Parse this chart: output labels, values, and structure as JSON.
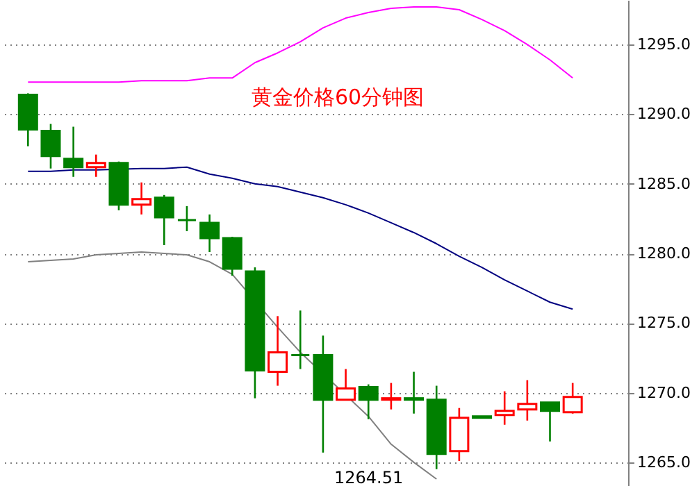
{
  "chart_data": {
    "type": "candlestick",
    "title": "黄金价格60分钟图",
    "categories": [
      null,
      null,
      null,
      null,
      null,
      null,
      null,
      null,
      null,
      null,
      null,
      null,
      null,
      null,
      null,
      null,
      null,
      null,
      null,
      null,
      null,
      null,
      null,
      null,
      null
    ],
    "ohlc": [
      [
        1291.4,
        1291.5,
        1287.7,
        1288.9
      ],
      [
        1288.8,
        1289.3,
        1286.1,
        1287.0
      ],
      [
        1286.8,
        1289.1,
        1285.5,
        1286.2
      ],
      [
        1286.2,
        1287.1,
        1285.5,
        1286.5
      ],
      [
        1286.5,
        1286.6,
        1283.1,
        1283.5
      ],
      [
        1283.5,
        1285.1,
        1282.8,
        1283.9
      ],
      [
        1284.0,
        1284.2,
        1280.6,
        1282.6
      ],
      [
        1282.4,
        1283.4,
        1281.6,
        1282.4
      ],
      [
        1282.2,
        1282.8,
        1280.1,
        1281.1
      ],
      [
        1281.1,
        1281.2,
        1278.4,
        1278.9
      ],
      [
        1278.7,
        1279.0,
        1269.6,
        1271.6
      ],
      [
        1271.5,
        1275.5,
        1270.5,
        1272.9
      ],
      [
        1272.7,
        1275.9,
        1271.7,
        1272.7
      ],
      [
        1272.7,
        1274.1,
        1265.7,
        1269.5
      ],
      [
        1269.5,
        1271.7,
        1269.5,
        1270.3
      ],
      [
        1270.4,
        1270.6,
        1268.1,
        1269.5
      ],
      [
        1269.5,
        1270.7,
        1268.8,
        1269.6
      ],
      [
        1269.6,
        1271.5,
        1268.5,
        1269.5
      ],
      [
        1269.5,
        1270.5,
        1264.51,
        1265.6
      ],
      [
        1265.8,
        1268.9,
        1265.1,
        1268.2
      ],
      [
        1268.3,
        1268.3,
        1268.2,
        1268.2
      ],
      [
        1268.4,
        1270.1,
        1267.7,
        1268.7
      ],
      [
        1268.8,
        1270.9,
        1268.0,
        1269.2
      ],
      [
        1269.3,
        1269.3,
        1266.5,
        1268.7
      ],
      [
        1268.6,
        1270.7,
        1268.5,
        1269.7
      ]
    ],
    "colors": [
      "#008000",
      "#008000",
      "#008000",
      "#ff0000",
      "#008000",
      "#ff0000",
      "#008000",
      "#008000",
      "#008000",
      "#008000",
      "#008000",
      "#ff0000",
      "#008000",
      "#008000",
      "#ff0000",
      "#008000",
      "#ff0000",
      "#008000",
      "#008000",
      "#ff0000",
      "#008000",
      "#ff0000",
      "#ff0000",
      "#008000",
      "#ff0000"
    ],
    "series": [
      {
        "type": "line",
        "color": "#ff00ff",
        "values": [
          1292.3,
          1292.3,
          1292.3,
          1292.3,
          1292.3,
          1292.4,
          1292.4,
          1292.4,
          1292.6,
          1292.6,
          1293.7,
          1294.4,
          1295.2,
          1296.2,
          1296.9,
          1297.3,
          1297.6,
          1297.7,
          1297.7,
          1297.5,
          1296.8,
          1296.0,
          1295.0,
          1293.9,
          1292.6
        ]
      },
      {
        "type": "line",
        "color": "#000080",
        "values": [
          1285.9,
          1285.9,
          1286.0,
          1286.0,
          null,
          1286.1,
          1286.1,
          1286.2,
          1285.7,
          1285.4,
          1285.0,
          1284.8,
          1284.4,
          1284.0,
          1283.5,
          1282.9,
          1282.2,
          1281.5,
          1280.7,
          1279.8,
          1279.0,
          1278.1,
          1277.3,
          1276.5,
          1276.0
        ]
      },
      {
        "type": "line",
        "color": "#808080",
        "values": [
          1279.4,
          1279.5,
          1279.6,
          1279.9,
          1280.0,
          1280.1,
          1280.0,
          1279.9,
          1279.4,
          1278.5,
          null,
          1274.7,
          1272.9,
          null,
          null,
          1268.3,
          1266.3,
          1265.0,
          1263.8,
          null,
          null,
          null,
          null,
          null,
          null
        ]
      }
    ],
    "annotations": [
      "1264.51"
    ],
    "ylim": [
      1263.3,
      1298.2
    ],
    "yticks": [
      {
        "value": 1265,
        "label": "1265.0"
      },
      {
        "value": 1270,
        "label": "1270.0"
      },
      {
        "value": 1275,
        "label": "1275.0"
      },
      {
        "value": 1280,
        "label": "1280.0"
      },
      {
        "value": 1285,
        "label": "1285.0"
      },
      {
        "value": 1290,
        "label": "1290.0"
      },
      {
        "value": 1295,
        "label": "1295.0"
      }
    ],
    "grid": "y",
    "tick_labels": "y"
  }
}
